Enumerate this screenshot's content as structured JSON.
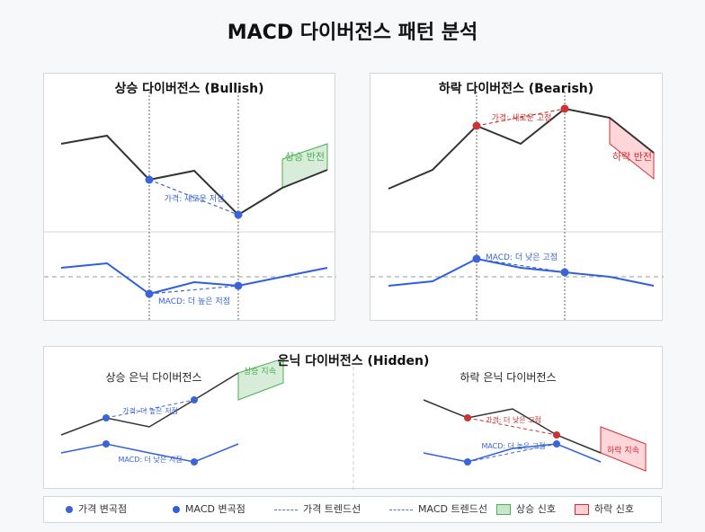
{
  "title": "MACD 다이버전스 패턴 분석",
  "colors": {
    "price_line": "#333333",
    "macd_line": "#2f5fe0",
    "bullish": "#4caf50",
    "bullish_fill": "#c8e6c9",
    "bearish": "#d32f2f",
    "bearish_fill": "#ffcdd2",
    "zero_line": "#999999",
    "pivot_blue": "#3b64d8",
    "pivot_red": "#cc3333"
  },
  "panels": {
    "bullish": {
      "title": "상승 다이버전스 (Bullish)",
      "signal_label": "상승 반전",
      "price_trend_label": "가격: 새로운 저점",
      "macd_trend_label": "MACD: 더 높은 저점"
    },
    "bearish": {
      "title": "하락 다이버전스 (Bearish)",
      "signal_label": "하락 반전",
      "price_trend_label": "가격: 새로운 고점",
      "macd_trend_label": "MACD: 더 낮은 고점"
    },
    "hidden": {
      "title": "은닉 다이버전스 (Hidden)",
      "bull_subtitle": "상승 은닉 다이버전스",
      "bull_price_label": "가격: 더 높은 저점",
      "bull_macd_label": "MACD: 더 낮은 저점",
      "bull_signal_label": "상승 지속",
      "bear_subtitle": "하락 은닉 다이버전스",
      "bear_price_label": "가격: 더 낮은 고점",
      "bear_macd_label": "MACD: 더 높은 고점",
      "bear_signal_label": "하락 지속"
    }
  },
  "legend": {
    "price_pivot": "가격 변곡점",
    "macd_pivot": "MACD 변곡점",
    "price_trend": "가격 트렌드선",
    "macd_trend": "MACD 트렌드선",
    "bull_signal": "상승 신호",
    "bear_signal": "하락 신호"
  }
}
